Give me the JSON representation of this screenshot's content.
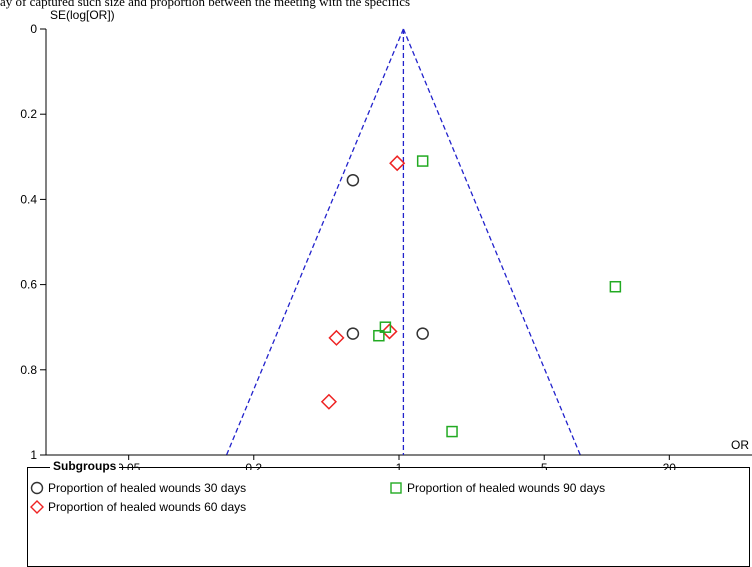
{
  "caption": "ay of captured such size and proportion between the meeting with the specifics",
  "chart_data": {
    "type": "scatter",
    "title": "",
    "ylabel": "SE(log[OR])",
    "xlabel": "OR",
    "x_scale": "log",
    "xlim": [
      0.02,
      50
    ],
    "ylim": [
      0,
      1
    ],
    "y_inverted": true,
    "x_ticks": [
      0.05,
      0.2,
      1,
      5,
      20
    ],
    "x_tick_labels": [
      "0.05",
      "0.2",
      "1",
      "5",
      "20"
    ],
    "y_ticks": [
      0,
      0.2,
      0.4,
      0.6,
      0.8,
      1
    ],
    "y_tick_labels": [
      "0",
      "0.2",
      "0.4",
      "0.6",
      "0.8",
      "1"
    ],
    "pooled_or": 1.05,
    "funnel_color": "#2222cc",
    "grid": false,
    "legend_position": "bottom",
    "series": [
      {
        "name": "Proportion of healed wounds 30 days",
        "marker": "circle",
        "color": "#333333",
        "points": [
          [
            0.6,
            0.355
          ],
          [
            0.6,
            0.715
          ],
          [
            1.3,
            0.715
          ]
        ]
      },
      {
        "name": "Proportion of healed wounds 60 days",
        "marker": "diamond",
        "color": "#ee2222",
        "points": [
          [
            0.98,
            0.315
          ],
          [
            0.5,
            0.725
          ],
          [
            0.9,
            0.71
          ],
          [
            0.46,
            0.875
          ]
        ]
      },
      {
        "name": "Proportion of healed wounds 90 days",
        "marker": "square",
        "color": "#22aa22",
        "points": [
          [
            1.3,
            0.31
          ],
          [
            11,
            0.605
          ],
          [
            0.86,
            0.7
          ],
          [
            0.8,
            0.72
          ],
          [
            1.8,
            0.945
          ]
        ]
      }
    ]
  },
  "legend": {
    "title": "Subgroups",
    "items": [
      {
        "label": "Proportion of healed wounds 30 days",
        "marker": "circle",
        "color": "#333333"
      },
      {
        "label": "Proportion of healed wounds 60 days",
        "marker": "diamond",
        "color": "#ee2222"
      },
      {
        "label": "Proportion of healed wounds 90 days",
        "marker": "square",
        "color": "#22aa22"
      }
    ]
  }
}
